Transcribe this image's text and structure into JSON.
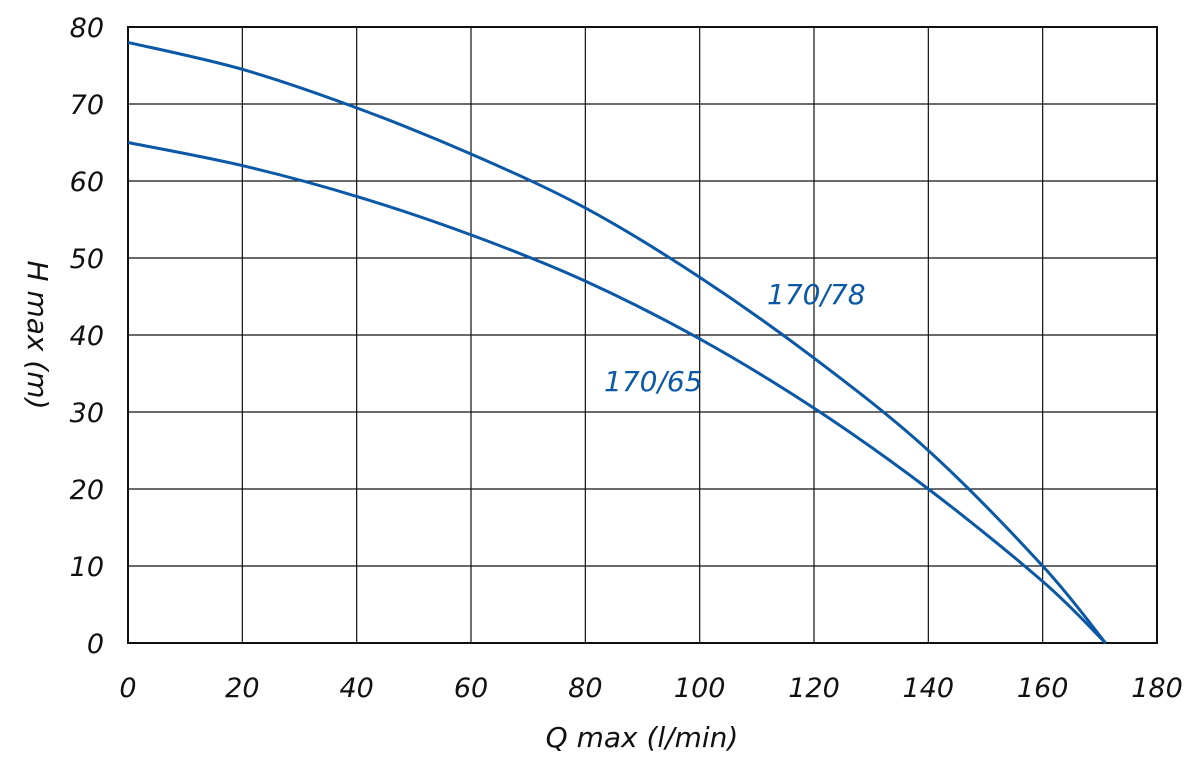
{
  "chart_data": {
    "type": "line",
    "title": "",
    "xlabel": "Q max (l/min)",
    "ylabel": "H max (m)",
    "xlim": [
      0,
      180
    ],
    "ylim": [
      0,
      80
    ],
    "x_ticks": [
      "0",
      "20",
      "40",
      "60",
      "80",
      "100",
      "120",
      "140",
      "160",
      "180"
    ],
    "y_ticks": [
      "0",
      "10",
      "20",
      "30",
      "40",
      "50",
      "60",
      "70",
      "80"
    ],
    "grid": true,
    "line_color": "#0a58a6",
    "series": [
      {
        "name": "170/78",
        "x": [
          0,
          20,
          40,
          60,
          80,
          100,
          120,
          140,
          160,
          171
        ],
        "y": [
          78,
          74.5,
          69.5,
          63.5,
          56.5,
          47.5,
          37,
          25,
          10,
          0
        ]
      },
      {
        "name": "170/65",
        "x": [
          0,
          20,
          40,
          60,
          80,
          100,
          120,
          140,
          160,
          171
        ],
        "y": [
          65,
          62,
          58,
          53,
          47,
          39.5,
          30.5,
          20,
          8,
          0
        ]
      }
    ]
  }
}
